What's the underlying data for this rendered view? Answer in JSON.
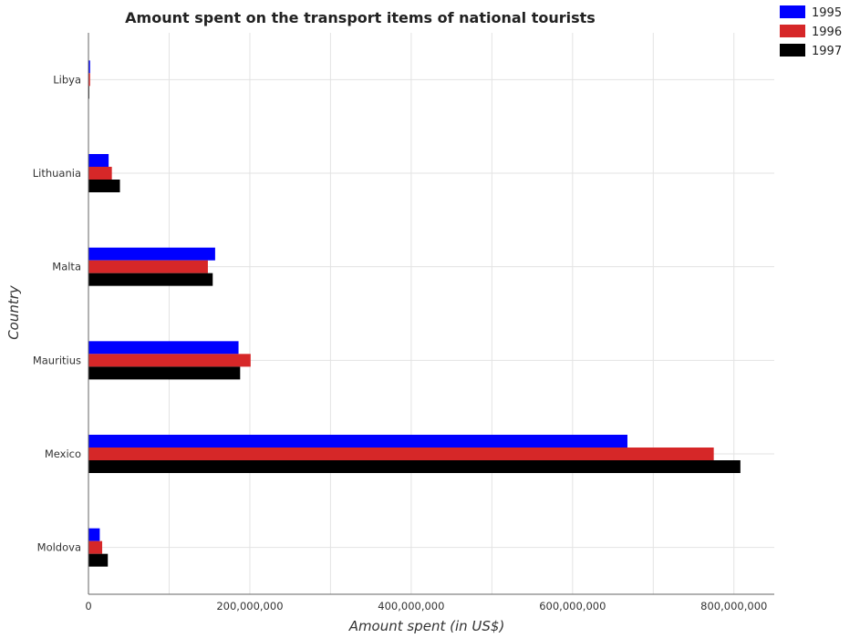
{
  "chart_data": {
    "type": "bar",
    "orientation": "horizontal",
    "title": "Amount spent on the transport items of national tourists",
    "xlabel": "Amount spent (in US$)",
    "ylabel": "Country",
    "categories": [
      "Libya",
      "Lithuania",
      "Malta",
      "Mauritius",
      "Mexico",
      "Moldova"
    ],
    "series": [
      {
        "name": "1995",
        "color": "#0000ff",
        "values": [
          2000000,
          25000000,
          157000000,
          186000000,
          668000000,
          14000000
        ]
      },
      {
        "name": "1996",
        "color": "#d62728",
        "values": [
          2000000,
          29000000,
          148000000,
          201000000,
          775000000,
          17000000
        ]
      },
      {
        "name": "1997",
        "color": "#000000",
        "values": [
          1000000,
          39000000,
          154000000,
          188000000,
          808000000,
          24000000
        ]
      }
    ],
    "xlim": [
      0,
      850000000
    ],
    "xticks": [
      0,
      200000000,
      400000000,
      600000000,
      800000000
    ],
    "xtick_labels": [
      "0",
      "200,000,000",
      "400,000,000",
      "600,000,000",
      "800,000,000"
    ],
    "grid": true,
    "legend_position": "top-right"
  }
}
